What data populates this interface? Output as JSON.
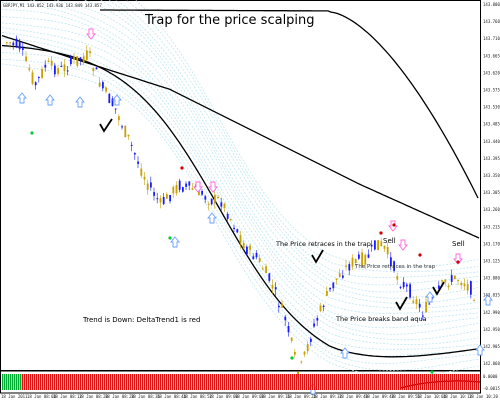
{
  "header": {
    "symbol_info": "GBPJPY,M1  143.852 143.936 143.849 143.857",
    "title": "Trap for the price scalping"
  },
  "annotations": {
    "sell_1": "Sell",
    "sell_2": "Sell",
    "retrace_1": "The Price retraces in the trap",
    "retrace_2": "The Price retraces in the trap",
    "breaks": "The Price breaks band aqua",
    "trend": "Trend is Down: DeltaTrend1 is red"
  },
  "axes": {
    "price_labels": [
      "143.800",
      "143.760",
      "143.710",
      "143.665",
      "143.620",
      "143.575",
      "143.530",
      "143.485",
      "143.440",
      "143.395",
      "143.350",
      "143.305",
      "143.260",
      "143.215",
      "143.170",
      "143.125",
      "143.080",
      "143.035",
      "142.990",
      "142.950",
      "142.905",
      "142.860"
    ],
    "time_labels": [
      "18 Jan 2011",
      "18 Jan 08:04",
      "18 Jan 08:12",
      "18 Jan 08:20",
      "18 Jan 08:28",
      "18 Jan 08:36",
      "18 Jan 08:44",
      "18 Jan 08:52",
      "18 Jan 09:00",
      "18 Jan 09:08",
      "18 Jan 09:16",
      "18 Jan 09:24",
      "18 Jan 09:32",
      "18 Jan 09:40",
      "18 Jan 09:48",
      "18 Jan 09:56",
      "18 Jan 10:04",
      "18 Jan 10:12",
      "18 Jan 10:20"
    ],
    "indicator_labels": [
      "0.0000",
      "-0.0015"
    ]
  },
  "colors": {
    "bull": "#1a1aff",
    "bear": "#c8a000",
    "band": "#bfe6f2",
    "curve": "#000000",
    "up_arrow": "#6aa0ff",
    "down_arrow": "#ff66dd",
    "dot_red": "#cc0000",
    "dot_green": "#00cc33",
    "indicator_green": "#00aa33",
    "indicator_red": "#dd1111"
  }
}
